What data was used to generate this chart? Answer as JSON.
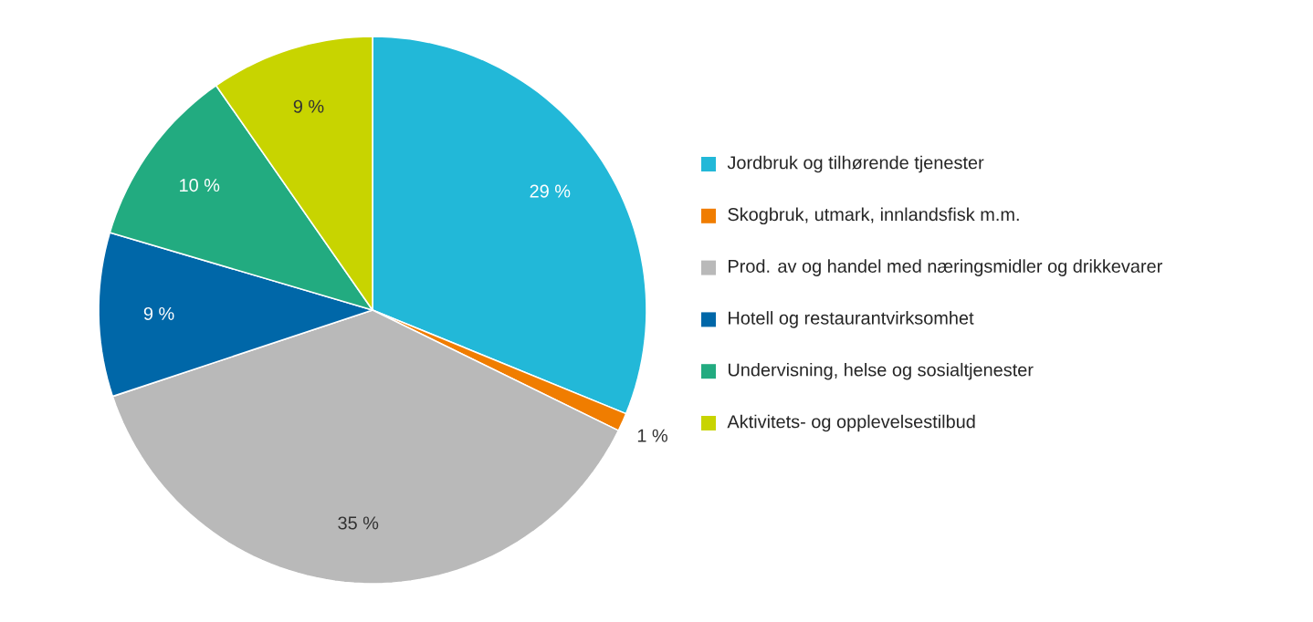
{
  "chart_data": {
    "type": "pie",
    "categories": [
      "Jordbruk og tilhørende tjenester",
      "Skogbruk, utmark, innlandsfisk m.m.",
      "Prod. av og handel med næringsmidler og drikkevarer",
      "Hotell og restaurantvirksomhet",
      "Undervisning, helse og sosialtjenester",
      "Aktivitets- og opplevelsestilbud"
    ],
    "values": [
      29,
      1,
      35,
      9,
      10,
      9
    ],
    "value_labels": [
      "29 %",
      "1 %",
      "35 %",
      "9 %",
      "10 %",
      "9 %"
    ],
    "colors": [
      "#22b8d8",
      "#f07d00",
      "#b9b9b9",
      "#0067a8",
      "#22ab80",
      "#c8d400"
    ],
    "legend": "right"
  }
}
